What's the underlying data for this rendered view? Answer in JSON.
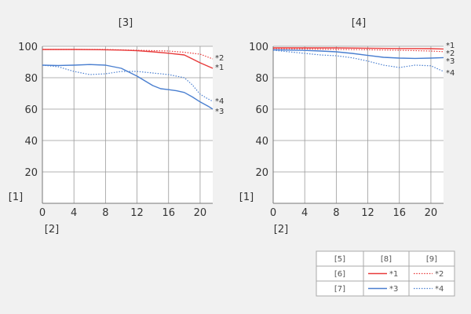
{
  "chart_data": [
    {
      "type": "line",
      "title": "[3]",
      "ylabel": "[1]",
      "xlabel": "[2]",
      "xlim": [
        0,
        21.6
      ],
      "ylim": [
        0,
        100
      ],
      "xticks": [
        0,
        4,
        8,
        12,
        16,
        20
      ],
      "yticks": [
        20,
        40,
        60,
        80,
        100
      ],
      "grid": true,
      "series": [
        {
          "name": "*1",
          "style": "solid",
          "color": "#e83a3a",
          "x": [
            0,
            4,
            8,
            10,
            12,
            14,
            16,
            18,
            19,
            20,
            21.6
          ],
          "y": [
            98,
            98,
            97.8,
            97.6,
            97.2,
            96.5,
            95.6,
            94.5,
            92,
            89.5,
            86
          ]
        },
        {
          "name": "*2",
          "style": "dotted",
          "color": "#e83a3a",
          "x": [
            0,
            4,
            8,
            12,
            16,
            18,
            20,
            21.6
          ],
          "y": [
            98,
            98,
            98,
            97.5,
            97,
            96.2,
            95,
            92
          ]
        },
        {
          "name": "*3",
          "style": "solid",
          "color": "#4a7fd0",
          "x": [
            0,
            2,
            4,
            6,
            8,
            10,
            12,
            13,
            14,
            15,
            16,
            17,
            18,
            19,
            20,
            21,
            21.6
          ],
          "y": [
            88,
            87.8,
            88,
            88.4,
            88,
            86,
            81,
            78,
            75,
            73,
            72.4,
            71.7,
            70.6,
            67.8,
            64.6,
            61.9,
            60
          ]
        },
        {
          "name": "*4",
          "style": "dotted",
          "color": "#4a7fd0",
          "x": [
            0,
            2,
            4,
            6,
            8,
            10,
            12,
            14,
            16,
            18,
            19,
            20,
            21,
            21.6
          ],
          "y": [
            88,
            87,
            84,
            82,
            82.5,
            84,
            84,
            83,
            82,
            80,
            75.5,
            69.5,
            66.5,
            65
          ]
        }
      ],
      "curve_labels": [
        {
          "text": "*2",
          "x": 21.6,
          "y": 93
        },
        {
          "text": "*1",
          "x": 21.6,
          "y": 87
        },
        {
          "text": "*4",
          "x": 21.6,
          "y": 65.5
        },
        {
          "text": "*3",
          "x": 21.6,
          "y": 59
        }
      ]
    },
    {
      "type": "line",
      "title": "[4]",
      "ylabel": "[1]",
      "xlabel": "[2]",
      "xlim": [
        0,
        21.6
      ],
      "ylim": [
        0,
        100
      ],
      "xticks": [
        0,
        4,
        8,
        12,
        16,
        20
      ],
      "yticks": [
        20,
        40,
        60,
        80,
        100
      ],
      "grid": true,
      "series": [
        {
          "name": "*1",
          "style": "solid",
          "color": "#e83a3a",
          "x": [
            0,
            4,
            8,
            12,
            16,
            20,
            21.6
          ],
          "y": [
            99,
            99,
            99,
            98.8,
            98.6,
            98.5,
            98.3
          ]
        },
        {
          "name": "*2",
          "style": "dotted",
          "color": "#e83a3a",
          "x": [
            0,
            4,
            8,
            12,
            16,
            20,
            21.6
          ],
          "y": [
            98.5,
            98.3,
            98,
            97.8,
            97.5,
            97,
            96.6
          ]
        },
        {
          "name": "*3",
          "style": "solid",
          "color": "#4a7fd0",
          "x": [
            0,
            2,
            4,
            6,
            8,
            10,
            12,
            14,
            16,
            18,
            20,
            21.6
          ],
          "y": [
            97.8,
            97.6,
            97.4,
            97,
            96.5,
            95.5,
            94.2,
            93,
            92.5,
            92.3,
            92.5,
            92.8
          ]
        },
        {
          "name": "*4",
          "style": "dotted",
          "color": "#4a7fd0",
          "x": [
            0,
            2,
            4,
            6,
            8,
            10,
            12,
            14,
            16,
            18,
            20,
            21.6
          ],
          "y": [
            97.5,
            96.5,
            95.5,
            94.5,
            94,
            92.7,
            90.6,
            88,
            86.5,
            88,
            87.6,
            84
          ]
        }
      ],
      "curve_labels": [
        {
          "text": "*1",
          "x": 21.6,
          "y": 101
        },
        {
          "text": "*2",
          "x": 21.6,
          "y": 96
        },
        {
          "text": "*3",
          "x": 21.6,
          "y": 91
        },
        {
          "text": "*4",
          "x": 21.6,
          "y": 83.5
        }
      ]
    }
  ],
  "legend": {
    "header": [
      "[5]",
      "[8]",
      "[9]"
    ],
    "rows": [
      {
        "label": "[6]",
        "solid": {
          "text": "*1",
          "color": "#e83a3a"
        },
        "dotted": {
          "text": "*2",
          "color": "#e83a3a"
        }
      },
      {
        "label": "[7]",
        "solid": {
          "text": "*3",
          "color": "#4a7fd0"
        },
        "dotted": {
          "text": "*4",
          "color": "#4a7fd0"
        }
      }
    ]
  }
}
